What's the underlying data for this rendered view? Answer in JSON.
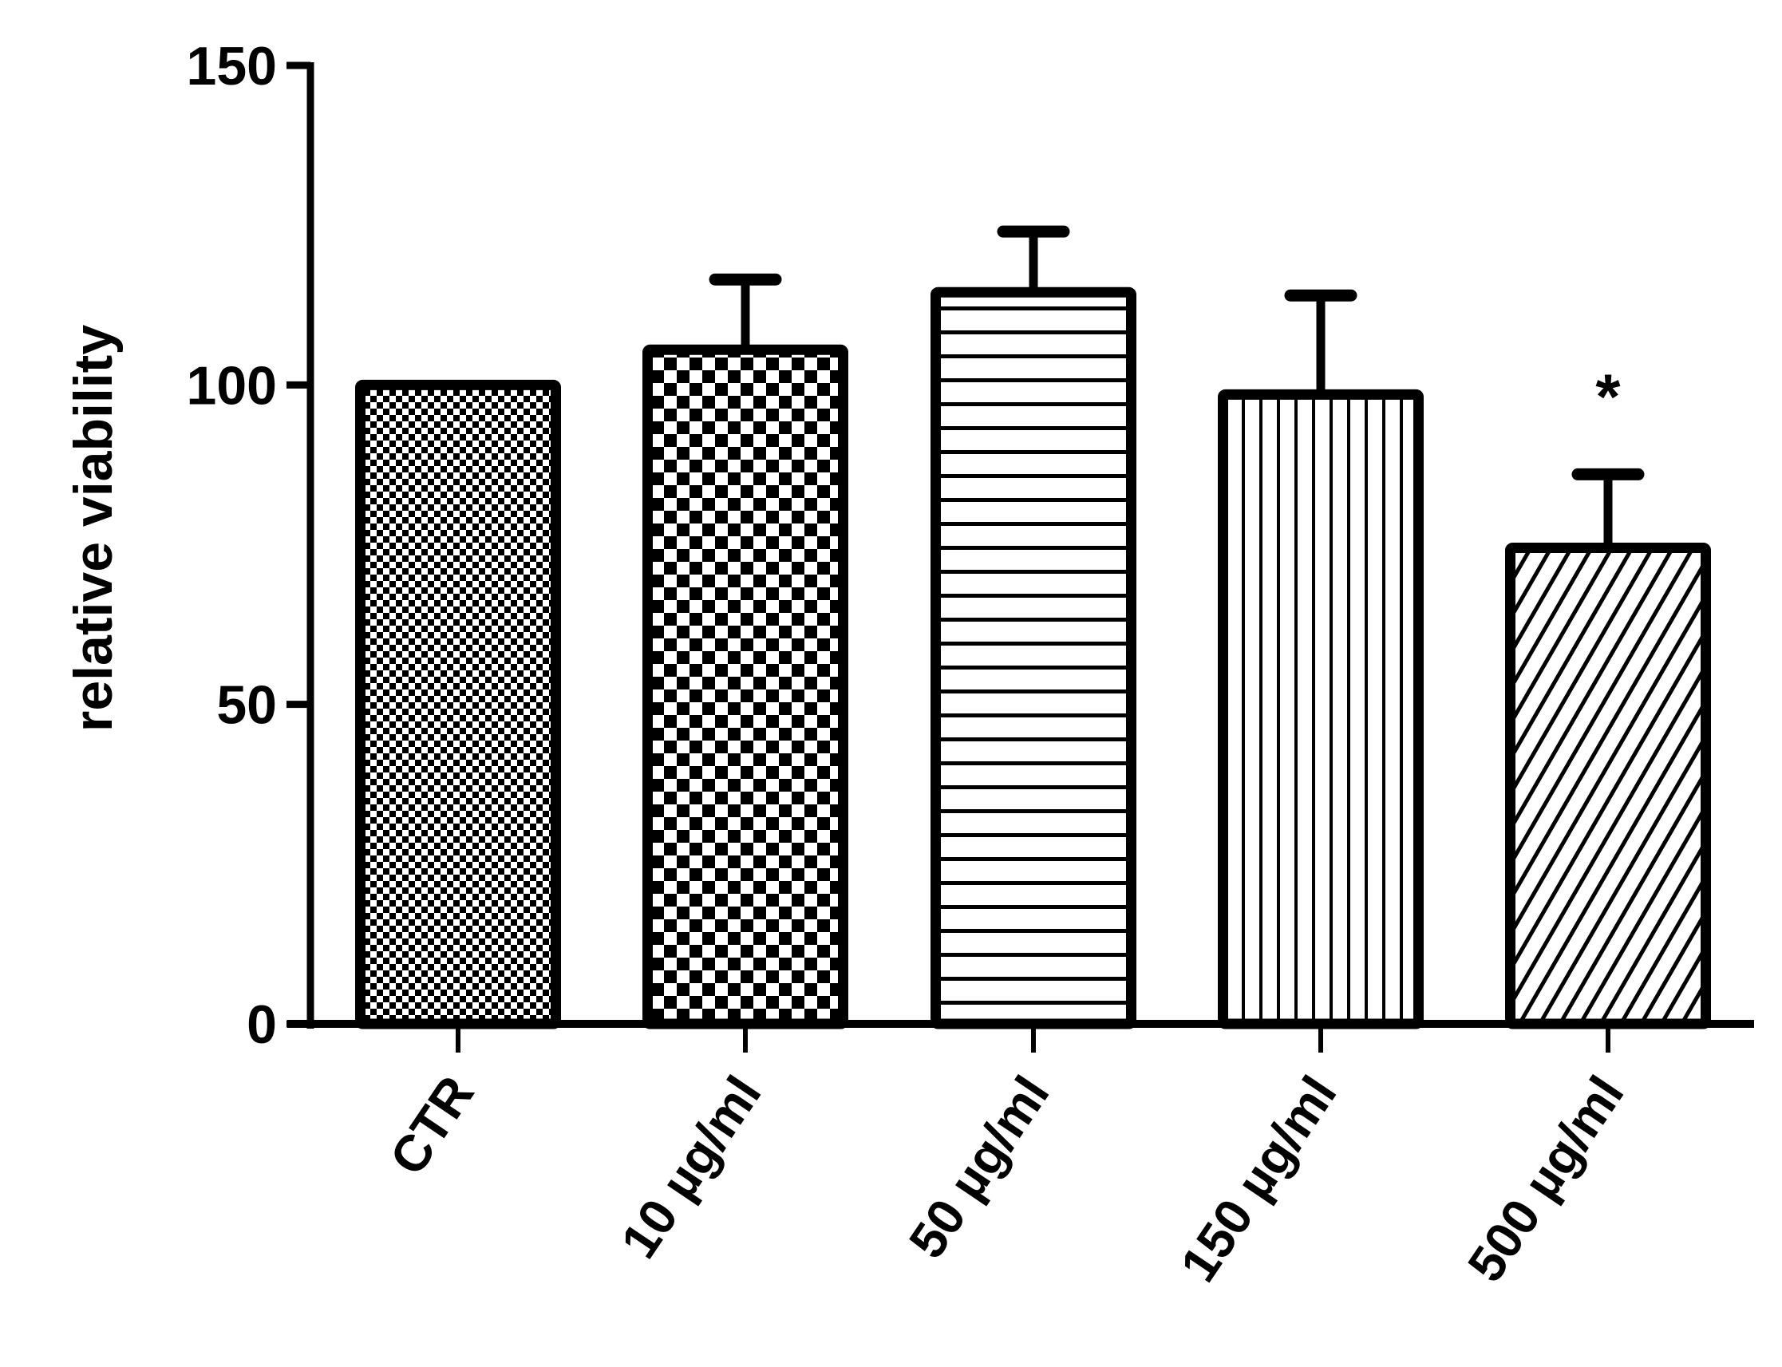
{
  "chart_data": {
    "type": "bar",
    "title": "",
    "xlabel": "",
    "ylabel": "relative viability",
    "ylim": [
      0,
      150
    ],
    "yticks": [
      0,
      50,
      100,
      150
    ],
    "grid": false,
    "legend": null,
    "categories": [
      "CTR",
      "10 µg/ml",
      "50 µg/ml",
      "150 µg/ml",
      "500 µg/ml"
    ],
    "values": [
      100,
      105.5,
      114.5,
      98.5,
      74.5
    ],
    "error_upper": [
      0,
      11,
      9.5,
      15.5,
      11.5
    ],
    "patterns": [
      "fine-checker",
      "coarse-checker",
      "horizontal-lines",
      "vertical-lines",
      "diagonal-lines"
    ],
    "annotations": [
      {
        "category": "500 µg/ml",
        "text": "*"
      }
    ]
  },
  "colors": {
    "ink": "#000000",
    "background": "#ffffff"
  }
}
